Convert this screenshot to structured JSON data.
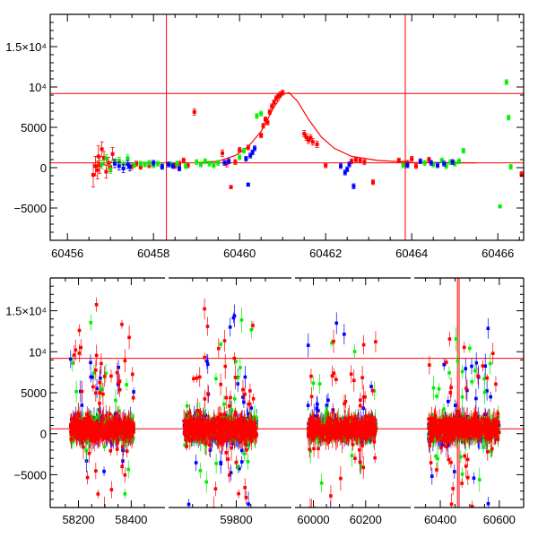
{
  "chart_data": [
    {
      "type": "scatter",
      "title": "",
      "xlabel": "",
      "ylabel": "",
      "xlim": [
        60455.6,
        60466.6
      ],
      "ylim": [
        -9000,
        19000
      ],
      "x_ticks": [
        60456,
        60458,
        60460,
        60462,
        60464,
        60466
      ],
      "x_tick_labels": [
        "60456",
        "60458",
        "60460",
        "60462",
        "60464",
        "60466"
      ],
      "y_ticks": [
        -5000,
        0,
        5000,
        10000,
        15000
      ],
      "y_tick_labels": [
        "−5000",
        "0",
        "5000",
        "10⁴",
        "1.5×10⁴"
      ],
      "hlines": [
        600,
        9200
      ],
      "vlines": [
        60458.3,
        60463.85
      ],
      "line_color": "#ff0000",
      "marker_colors": {
        "red": "#ff0000",
        "green": "#00ee00",
        "blue": "#0000ff"
      },
      "model_curve": {
        "color": "#ff0000",
        "points": [
          [
            60459.0,
            600
          ],
          [
            60459.5,
            800
          ],
          [
            60459.9,
            1500
          ],
          [
            60460.2,
            2600
          ],
          [
            60460.5,
            4500
          ],
          [
            60460.8,
            7500
          ],
          [
            60461.0,
            9100
          ],
          [
            60461.15,
            9300
          ],
          [
            60461.35,
            8200
          ],
          [
            60461.6,
            6000
          ],
          [
            60461.9,
            3800
          ],
          [
            60462.2,
            2400
          ],
          [
            60462.6,
            1400
          ],
          [
            60463.2,
            900
          ],
          [
            60464.0,
            650
          ],
          [
            60465.5,
            600
          ]
        ]
      },
      "series": [
        {
          "color": "red",
          "points": [
            [
              60456.6,
              -900,
              1500
            ],
            [
              60456.65,
              200,
              1200
            ],
            [
              60456.7,
              -300,
              1100
            ],
            [
              60456.72,
              1400,
              1300
            ],
            [
              60456.75,
              300,
              1000
            ],
            [
              60456.8,
              2300,
              900
            ],
            [
              60456.85,
              1200,
              800
            ],
            [
              60456.9,
              -500,
              800
            ],
            [
              60456.95,
              600,
              700
            ],
            [
              60457.0,
              100,
              600
            ],
            [
              60457.05,
              1700,
              800
            ],
            [
              60457.5,
              200,
              400
            ],
            [
              60457.6,
              500,
              300
            ],
            [
              60457.7,
              100,
              300
            ],
            [
              60457.9,
              300,
              300
            ],
            [
              60458.5,
              200,
              300
            ],
            [
              60458.6,
              500,
              300
            ],
            [
              60458.7,
              900,
              300
            ],
            [
              60458.8,
              300,
              300
            ],
            [
              60458.95,
              6900,
              400
            ],
            [
              60459.6,
              1800,
              400
            ],
            [
              60459.7,
              500,
              400
            ],
            [
              60459.8,
              -2400,
              200
            ],
            [
              60459.9,
              700,
              300
            ],
            [
              60460.0,
              2200,
              300
            ],
            [
              60460.2,
              2500,
              300
            ],
            [
              60460.5,
              4000,
              300
            ],
            [
              60460.55,
              5200,
              300
            ],
            [
              60460.6,
              6000,
              300
            ],
            [
              60460.65,
              5600,
              300
            ],
            [
              60460.7,
              6900,
              300
            ],
            [
              60460.75,
              7600,
              300
            ],
            [
              60460.8,
              8100,
              300
            ],
            [
              60460.85,
              8600,
              300
            ],
            [
              60460.9,
              8900,
              300
            ],
            [
              60460.95,
              9100,
              300
            ],
            [
              60461.0,
              9300,
              300
            ],
            [
              60461.5,
              4200,
              400
            ],
            [
              60461.55,
              3800,
              400
            ],
            [
              60461.6,
              3400,
              400
            ],
            [
              60461.65,
              3700,
              400
            ],
            [
              60461.7,
              3200,
              400
            ],
            [
              60461.8,
              2900,
              400
            ],
            [
              60462.0,
              300,
              300
            ],
            [
              60462.6,
              800,
              300
            ],
            [
              60462.7,
              1000,
              300
            ],
            [
              60462.8,
              900,
              300
            ],
            [
              60462.9,
              700,
              300
            ],
            [
              60463.1,
              -1800,
              300
            ],
            [
              60463.7,
              900,
              300
            ],
            [
              60463.8,
              500,
              300
            ],
            [
              60463.9,
              600,
              300
            ],
            [
              60464.0,
              1100,
              300
            ],
            [
              60464.1,
              200,
              300
            ],
            [
              60464.4,
              1000,
              300
            ],
            [
              60466.55,
              -800,
              300
            ]
          ]
        },
        {
          "color": "green",
          "points": [
            [
              60456.8,
              400,
              500
            ],
            [
              60456.9,
              1100,
              500
            ],
            [
              60457.0,
              -200,
              500
            ],
            [
              60457.1,
              700,
              400
            ],
            [
              60457.2,
              900,
              400
            ],
            [
              60457.3,
              400,
              400
            ],
            [
              60457.4,
              1200,
              400
            ],
            [
              60457.55,
              300,
              300
            ],
            [
              60457.7,
              500,
              300
            ],
            [
              60457.8,
              400,
              300
            ],
            [
              60457.9,
              600,
              300
            ],
            [
              60458.0,
              300,
              300
            ],
            [
              60458.1,
              500,
              300
            ],
            [
              60458.2,
              200,
              300
            ],
            [
              60458.4,
              400,
              300
            ],
            [
              60458.55,
              500,
              300
            ],
            [
              60458.75,
              200,
              300
            ],
            [
              60459.0,
              700,
              300
            ],
            [
              60459.1,
              400,
              300
            ],
            [
              60459.2,
              800,
              300
            ],
            [
              60459.3,
              500,
              300
            ],
            [
              60459.4,
              300,
              300
            ],
            [
              60459.5,
              600,
              300
            ],
            [
              60460.0,
              1300,
              300
            ],
            [
              60460.1,
              2100,
              300
            ],
            [
              60460.4,
              6400,
              300
            ],
            [
              60460.5,
              6700,
              300
            ],
            [
              60463.8,
              300,
              300
            ],
            [
              60464.3,
              600,
              300
            ],
            [
              60464.5,
              400,
              300
            ],
            [
              60464.7,
              900,
              300
            ],
            [
              60464.8,
              200,
              300
            ],
            [
              60464.9,
              700,
              300
            ],
            [
              60465.0,
              500,
              300
            ],
            [
              60465.1,
              800,
              300
            ],
            [
              60465.2,
              2100,
              300
            ],
            [
              60466.05,
              -4800,
              200
            ],
            [
              60466.2,
              10600,
              300
            ],
            [
              60466.25,
              6200,
              300
            ],
            [
              60466.3,
              100,
              300
            ]
          ]
        },
        {
          "color": "blue",
          "points": [
            [
              60457.1,
              500,
              500
            ],
            [
              60457.2,
              200,
              500
            ],
            [
              60457.3,
              -100,
              500
            ],
            [
              60457.4,
              400,
              500
            ],
            [
              60457.45,
              100,
              500
            ],
            [
              60458.0,
              600,
              300
            ],
            [
              60458.2,
              100,
              300
            ],
            [
              60458.35,
              400,
              300
            ],
            [
              60458.45,
              200,
              300
            ],
            [
              60458.6,
              -100,
              300
            ],
            [
              60459.65,
              600,
              300
            ],
            [
              60459.75,
              800,
              300
            ],
            [
              60460.15,
              1100,
              300
            ],
            [
              60460.25,
              1500,
              300
            ],
            [
              60460.3,
              1900,
              300
            ],
            [
              60460.35,
              2400,
              300
            ],
            [
              60460.2,
              -2100,
              200
            ],
            [
              60462.35,
              200,
              300
            ],
            [
              60462.45,
              -600,
              300
            ],
            [
              60462.5,
              -200,
              300
            ],
            [
              60462.55,
              400,
              300
            ],
            [
              60462.65,
              -2300,
              300
            ],
            [
              60463.9,
              300,
              300
            ],
            [
              60464.2,
              800,
              300
            ],
            [
              60464.45,
              600,
              300
            ],
            [
              60464.6,
              300,
              300
            ],
            [
              60464.75,
              500,
              300
            ],
            [
              60464.95,
              700,
              300
            ]
          ]
        }
      ]
    },
    {
      "type": "scatter",
      "title": "",
      "xlabel": "",
      "ylabel": "",
      "xlim": [
        58100,
        60640
      ],
      "ylim": [
        -9000,
        19000
      ],
      "broken_axis_segments": [
        [
          58120,
          58460
        ],
        [
          59580,
          59900
        ],
        [
          59940,
          60290
        ],
        [
          60330,
          60640
        ]
      ],
      "x_ticks": [
        58200,
        58400,
        59800,
        60000,
        60200,
        60400,
        60600
      ],
      "x_tick_labels": [
        "58200",
        "58400",
        "59800",
        "60000",
        "60200",
        "60400",
        "60600"
      ],
      "y_ticks": [
        -5000,
        0,
        5000,
        10000,
        15000
      ],
      "y_tick_labels": [
        "−5000",
        "0",
        "5000",
        "10⁴",
        "1.5×10⁴"
      ],
      "hlines": [
        600,
        9200
      ],
      "vlines": [
        60458.3,
        60463.85
      ],
      "line_color": "#ff0000",
      "marker_colors": {
        "red": "#ff0000",
        "green": "#00ee00",
        "blue": "#0000ff"
      },
      "observing_seasons": [
        {
          "start": 58170,
          "end": 58410,
          "scatter_sd": 1100,
          "outlier_fraction": 0.12
        },
        {
          "start": 59620,
          "end": 59870,
          "scatter_sd": 1200,
          "outlier_fraction": 0.14
        },
        {
          "start": 59980,
          "end": 60240,
          "scatter_sd": 1000,
          "outlier_fraction": 0.12
        },
        {
          "start": 60360,
          "end": 60600,
          "scatter_sd": 1100,
          "outlier_fraction": 0.14
        }
      ]
    }
  ]
}
